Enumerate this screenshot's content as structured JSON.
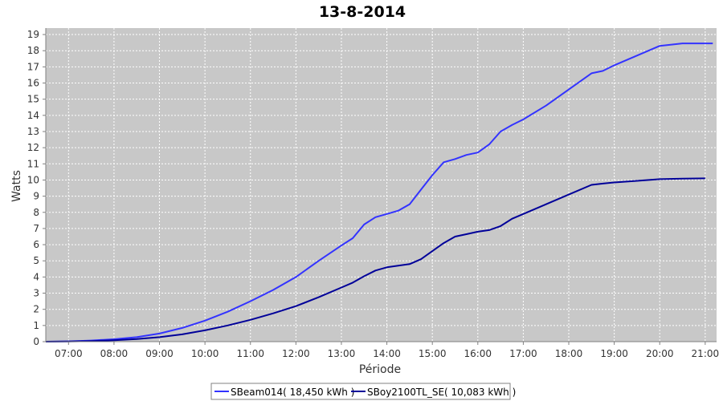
{
  "chart_data": {
    "type": "line",
    "title": "13-8-2014",
    "xlabel": "Période",
    "ylabel": "Watts",
    "x_ticks": [
      "07:00",
      "08:00",
      "09:00",
      "10:00",
      "11:00",
      "12:00",
      "13:00",
      "14:00",
      "15:00",
      "16:00",
      "17:00",
      "18:00",
      "19:00",
      "20:00",
      "21:00"
    ],
    "xlim": [
      "06:30",
      "21:15"
    ],
    "ylim": [
      0,
      19.4
    ],
    "y_ticks": [
      0,
      1,
      2,
      3,
      4,
      5,
      6,
      7,
      8,
      9,
      10,
      11,
      12,
      13,
      14,
      15,
      16,
      17,
      18,
      19
    ],
    "grid": true,
    "legend_position": "bottom",
    "colors": {
      "plot_bg": "#c8c8c8",
      "grid": "#ffffff",
      "axis": "#808080"
    },
    "series": [
      {
        "name": "SBeam014( 18,450 kWh )",
        "color": "#3333ff",
        "x": [
          "06:30",
          "07:00",
          "07:30",
          "08:00",
          "08:30",
          "09:00",
          "09:30",
          "10:00",
          "10:30",
          "11:00",
          "11:30",
          "12:00",
          "12:30",
          "13:00",
          "13:15",
          "13:30",
          "13:45",
          "14:00",
          "14:15",
          "14:30",
          "14:45",
          "15:00",
          "15:15",
          "15:30",
          "15:45",
          "16:00",
          "16:15",
          "16:30",
          "16:45",
          "17:00",
          "17:30",
          "18:00",
          "18:30",
          "18:45",
          "19:00",
          "19:30",
          "20:00",
          "20:30",
          "21:00",
          "21:10"
        ],
        "values": [
          0,
          0.02,
          0.07,
          0.15,
          0.28,
          0.5,
          0.85,
          1.3,
          1.85,
          2.5,
          3.2,
          4.0,
          5.0,
          5.95,
          6.4,
          7.25,
          7.7,
          7.9,
          8.1,
          8.5,
          9.4,
          10.3,
          11.1,
          11.3,
          11.55,
          11.7,
          12.2,
          13.0,
          13.4,
          13.75,
          14.6,
          15.6,
          16.6,
          16.75,
          17.1,
          17.7,
          18.3,
          18.45,
          18.45,
          18.45
        ]
      },
      {
        "name": "SBoy2100TL_SE( 10,083 kWh )",
        "color": "#000099",
        "x": [
          "06:30",
          "07:00",
          "07:30",
          "08:00",
          "08:30",
          "09:00",
          "09:30",
          "10:00",
          "10:30",
          "11:00",
          "11:30",
          "12:00",
          "12:30",
          "13:00",
          "13:15",
          "13:30",
          "13:45",
          "14:00",
          "14:15",
          "14:30",
          "14:45",
          "15:00",
          "15:15",
          "15:30",
          "15:45",
          "16:00",
          "16:15",
          "16:30",
          "16:45",
          "17:00",
          "17:30",
          "18:00",
          "18:30",
          "18:45",
          "19:00",
          "19:30",
          "20:00",
          "20:30",
          "21:00"
        ],
        "values": [
          0,
          0.01,
          0.04,
          0.09,
          0.16,
          0.28,
          0.45,
          0.7,
          1.0,
          1.35,
          1.75,
          2.2,
          2.75,
          3.35,
          3.65,
          4.05,
          4.4,
          4.6,
          4.7,
          4.8,
          5.1,
          5.6,
          6.1,
          6.5,
          6.65,
          6.8,
          6.9,
          7.15,
          7.6,
          7.9,
          8.5,
          9.1,
          9.7,
          9.78,
          9.85,
          9.95,
          10.05,
          10.08,
          10.1
        ]
      }
    ]
  }
}
